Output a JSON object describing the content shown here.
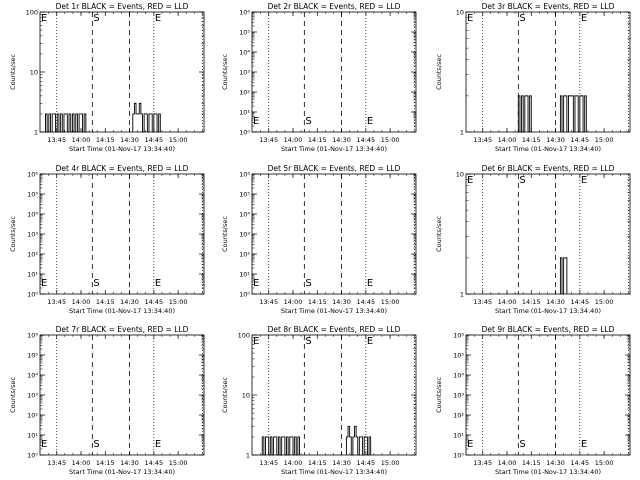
{
  "chart_data": [
    {
      "type": "line",
      "title": "Det 1r BLACK = Events, RED = LLD",
      "ylabel": "Counts/sec",
      "xlabel": "Start Time (01-Nov-17 13:34:40)",
      "yscale": "log",
      "ylim": [
        1,
        100
      ],
      "ytick_labels": [
        "1",
        "10",
        "100"
      ],
      "xtick_labels": [
        "13:45",
        "14:00",
        "14:15",
        "14:30",
        "14:45",
        "15:00"
      ],
      "markers": {
        "E_left": "E",
        "S": "S",
        "E_right": "E"
      },
      "series": [
        {
          "segments": [
            {
              "from": "13:37",
              "to": "14:03",
              "values": [
                1,
                2,
                1,
                2,
                1,
                2,
                2,
                1,
                2,
                1,
                2,
                1,
                2,
                2,
                1,
                2,
                1,
                2,
                1,
                2,
                1,
                2,
                2,
                1,
                2,
                1
              ]
            },
            {
              "from": "14:32",
              "to": "14:48",
              "values": [
                2,
                3,
                2,
                2,
                3,
                2,
                1,
                2,
                2,
                1,
                2,
                2,
                1,
                2,
                2,
                1,
                2
              ]
            }
          ]
        }
      ]
    },
    {
      "type": "line",
      "title": "Det 2r BLACK = Events, RED = LLD",
      "ylabel": "Counts/sec",
      "xlabel": "Start Time (01-Nov-17 13:34:40)",
      "yscale": "log",
      "ylim": [
        1,
        1000000
      ],
      "ytick_labels": [
        "10⁰",
        "10¹",
        "10²",
        "10³",
        "10⁴",
        "10⁵",
        "10⁶"
      ],
      "xtick_labels": [
        "13:45",
        "14:00",
        "14:15",
        "14:30",
        "14:45",
        "15:00"
      ],
      "markers": {
        "E_left": "E",
        "S": "S",
        "E_right": "E"
      },
      "series": []
    },
    {
      "type": "line",
      "title": "Det 3r BLACK = Events, RED = LLD",
      "ylabel": "Counts/sec",
      "xlabel": "Start Time (01-Nov-17 13:34:40)",
      "yscale": "log",
      "ylim": [
        1,
        10
      ],
      "ytick_labels": [
        "1",
        "10"
      ],
      "xtick_labels": [
        "13:45",
        "14:00",
        "14:15",
        "14:30",
        "14:45",
        "15:00"
      ],
      "markers": {
        "E_left": "E",
        "S": "S",
        "E_right": "E"
      },
      "series": [
        {
          "segments": [
            {
              "from": "14:06",
              "to": "14:14",
              "values": [
                1,
                2,
                1,
                2,
                1,
                2,
                2,
                1,
                2
              ]
            },
            {
              "from": "14:33",
              "to": "14:48",
              "values": [
                2,
                1,
                2,
                2,
                1,
                2,
                2,
                2,
                1,
                2,
                2,
                1,
                2,
                2,
                1,
                2
              ]
            }
          ]
        }
      ]
    },
    {
      "type": "line",
      "title": "Det 4r BLACK = Events, RED = LLD",
      "ylabel": "Counts/sec",
      "xlabel": "Start Time (01-Nov-17 13:34:40)",
      "yscale": "log",
      "ylim": [
        1,
        1000000
      ],
      "ytick_labels": [
        "10⁰",
        "10¹",
        "10²",
        "10³",
        "10⁴",
        "10⁵",
        "10⁶"
      ],
      "xtick_labels": [
        "13:45",
        "14:00",
        "14:15",
        "14:30",
        "14:45",
        "15:00"
      ],
      "markers": {
        "E_left": "E",
        "S": "S",
        "E_right": "E"
      },
      "series": []
    },
    {
      "type": "line",
      "title": "Det 5r BLACK = Events, RED = LLD",
      "ylabel": "Counts/sec",
      "xlabel": "Start Time (01-Nov-17 13:34:40)",
      "yscale": "log",
      "ylim": [
        1,
        1000000
      ],
      "ytick_labels": [
        "10⁰",
        "10¹",
        "10²",
        "10³",
        "10⁴",
        "10⁵",
        "10⁶"
      ],
      "xtick_labels": [
        "13:45",
        "14:00",
        "14:15",
        "14:30",
        "14:45",
        "15:00"
      ],
      "markers": {
        "E_left": "E",
        "S": "S",
        "E_right": "E"
      },
      "series": []
    },
    {
      "type": "line",
      "title": "Det 6r BLACK = Events, RED = LLD",
      "ylabel": "Counts/sec",
      "xlabel": "Start Time (01-Nov-17 13:34:40)",
      "yscale": "log",
      "ylim": [
        1,
        10
      ],
      "ytick_labels": [
        "1",
        "10"
      ],
      "xtick_labels": [
        "13:45",
        "14:00",
        "14:15",
        "14:30",
        "14:45",
        "15:00"
      ],
      "markers": {
        "E_left": "E",
        "S": "S",
        "E_right": "E"
      },
      "series": [
        {
          "segments": [
            {
              "from": "14:33",
              "to": "14:36",
              "values": [
                2,
                1,
                2,
                2
              ]
            }
          ]
        }
      ]
    },
    {
      "type": "line",
      "title": "Det 7r BLACK = Events, RED = LLD",
      "ylabel": "Counts/sec",
      "xlabel": "Start Time (01-Nov-17 13:34:40)",
      "yscale": "log",
      "ylim": [
        1,
        1000000
      ],
      "ytick_labels": [
        "10⁰",
        "10¹",
        "10²",
        "10³",
        "10⁴",
        "10⁵",
        "10⁶"
      ],
      "xtick_labels": [
        "13:45",
        "14:00",
        "14:15",
        "14:30",
        "14:45",
        "15:00"
      ],
      "markers": {
        "E_left": "E",
        "S": "S",
        "E_right": "E"
      },
      "series": []
    },
    {
      "type": "line",
      "title": "Det 8r BLACK = Events, RED = LLD",
      "ylabel": "Counts/sec",
      "xlabel": "Start Time (01-Nov-17 13:34:40)",
      "yscale": "log",
      "ylim": [
        1,
        100
      ],
      "ytick_labels": [
        "1",
        "10",
        "100"
      ],
      "xtick_labels": [
        "13:45",
        "14:00",
        "14:15",
        "14:30",
        "14:45",
        "15:00"
      ],
      "markers": {
        "E_left": "E",
        "S": "S",
        "E_right": "E"
      },
      "series": [
        {
          "segments": [
            {
              "from": "13:40",
              "to": "14:03",
              "values": [
                1,
                2,
                1,
                2,
                2,
                1,
                2,
                1,
                2,
                2,
                1,
                2,
                1,
                2,
                2,
                1,
                2,
                1,
                2,
                2,
                1,
                2,
                1,
                2
              ]
            },
            {
              "from": "14:33",
              "to": "14:47",
              "values": [
                2,
                3,
                2,
                1,
                2,
                3,
                2,
                1,
                2,
                2,
                1,
                2,
                2,
                1,
                2
              ]
            }
          ]
        }
      ]
    },
    {
      "type": "line",
      "title": "Det 9r BLACK = Events, RED = LLD",
      "ylabel": "Counts/sec",
      "xlabel": "Start Time (01-Nov-17 13:34:40)",
      "yscale": "log",
      "ylim": [
        1,
        1000000
      ],
      "ytick_labels": [
        "10⁰",
        "10¹",
        "10²",
        "10³",
        "10⁴",
        "10⁵",
        "10⁶"
      ],
      "xtick_labels": [
        "13:45",
        "14:00",
        "14:15",
        "14:30",
        "14:45",
        "15:00"
      ],
      "markers": {
        "E_left": "E",
        "S": "S",
        "E_right": "E"
      },
      "series": []
    }
  ],
  "colors": {
    "background": "#ffffff",
    "foreground": "#000000"
  }
}
